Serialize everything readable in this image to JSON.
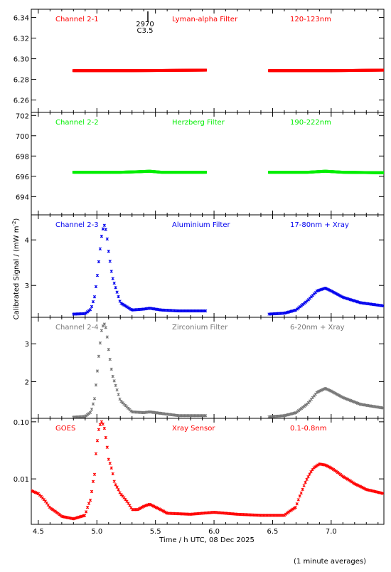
{
  "figure": {
    "ylabel": "Calibrated Signal / (mW m",
    "ylabel_sup": "-2",
    "ylabel_end": ")",
    "xlabel": "Time / h UTC, 08 Dec 2025",
    "footnote": "(1 minute averages)",
    "x_ticks": [
      4.5,
      5.0,
      5.5,
      6.0,
      6.5,
      7.0
    ],
    "x_tick_labels": [
      "4.5",
      "5.0",
      "5.5",
      "6.0",
      "6.5",
      "7.0"
    ],
    "xlim": [
      4.44,
      7.45
    ],
    "flare_marker": {
      "x": 5.45,
      "label1": "2970",
      "label2": "C3.5"
    }
  },
  "chart_data": [
    {
      "type": "scatter",
      "channel": "Channel 2-1",
      "filter": "Lyman-alpha Filter",
      "band": "120-123nm",
      "color": "#ff0000",
      "scale": "linear",
      "ylim": [
        6.248,
        6.348
      ],
      "y_ticks": [
        6.26,
        6.28,
        6.3,
        6.32,
        6.34
      ],
      "y_tick_labels": [
        "6.26",
        "6.28",
        "6.30",
        "6.32",
        "6.34"
      ],
      "segments": [
        {
          "x": [
            4.8,
            5.3,
            5.93
          ],
          "y": [
            6.2885,
            6.2885,
            6.289
          ]
        },
        {
          "x": [
            6.47,
            7.0,
            7.45
          ],
          "y": [
            6.2885,
            6.2885,
            6.289
          ]
        }
      ]
    },
    {
      "type": "scatter",
      "channel": "Channel 2-2",
      "filter": "Herzberg Filter",
      "band": "190-222nm",
      "color": "#00ee00",
      "scale": "linear",
      "ylim": [
        692.2,
        702.3
      ],
      "y_ticks": [
        694,
        696,
        698,
        700,
        702
      ],
      "y_tick_labels": [
        "694",
        "696",
        "698",
        "700",
        "702"
      ],
      "segments": [
        {
          "x": [
            4.8,
            5.2,
            5.35,
            5.45,
            5.55,
            5.93
          ],
          "y": [
            696.4,
            696.4,
            696.45,
            696.5,
            696.4,
            696.4
          ]
        },
        {
          "x": [
            6.47,
            6.8,
            6.95,
            7.1,
            7.45
          ],
          "y": [
            696.4,
            696.4,
            696.5,
            696.4,
            696.35
          ]
        }
      ]
    },
    {
      "type": "scatter",
      "channel": "Channel 2-3",
      "filter": "Aluminium Filter",
      "band": "17-80nm + Xray",
      "color": "#0000ee",
      "scale": "linear",
      "ylim": [
        2.3,
        4.55
      ],
      "y_ticks": [
        3,
        4
      ],
      "y_tick_labels": [
        "3",
        "4"
      ],
      "segments": [
        {
          "x": [
            4.8,
            4.9,
            4.95,
            4.98,
            5.0,
            5.02,
            5.04,
            5.06,
            5.08,
            5.1,
            5.13,
            5.2,
            5.3,
            5.4,
            5.45,
            5.55,
            5.7,
            5.93
          ],
          "y": [
            2.37,
            2.38,
            2.48,
            2.75,
            3.12,
            3.62,
            4.08,
            4.35,
            4.2,
            3.75,
            3.2,
            2.62,
            2.46,
            2.48,
            2.5,
            2.46,
            2.44,
            2.44
          ]
        },
        {
          "x": [
            6.47,
            6.6,
            6.7,
            6.8,
            6.88,
            6.95,
            7.0,
            7.1,
            7.25,
            7.45
          ],
          "y": [
            2.37,
            2.39,
            2.46,
            2.67,
            2.88,
            2.94,
            2.88,
            2.74,
            2.62,
            2.55
          ]
        }
      ]
    },
    {
      "type": "scatter",
      "channel": "Channel 2-4",
      "filter": "Zirconium Filter",
      "band": "6-20nm + Xray",
      "color": "#777777",
      "scale": "linear",
      "ylim": [
        1.03,
        3.7
      ],
      "y_ticks": [
        2,
        3
      ],
      "y_tick_labels": [
        "2",
        "3"
      ],
      "segments": [
        {
          "x": [
            4.8,
            4.9,
            4.95,
            4.98,
            5.0,
            5.02,
            5.04,
            5.06,
            5.08,
            5.1,
            5.13,
            5.2,
            5.3,
            5.4,
            5.45,
            5.55,
            5.7,
            5.93
          ],
          "y": [
            1.06,
            1.08,
            1.2,
            1.55,
            2.15,
            2.8,
            3.35,
            3.55,
            3.4,
            2.85,
            2.2,
            1.5,
            1.2,
            1.18,
            1.2,
            1.16,
            1.1,
            1.1
          ]
        },
        {
          "x": [
            6.47,
            6.6,
            6.7,
            6.8,
            6.88,
            6.95,
            7.0,
            7.1,
            7.25,
            7.45
          ],
          "y": [
            1.07,
            1.1,
            1.18,
            1.42,
            1.72,
            1.82,
            1.75,
            1.58,
            1.4,
            1.3
          ]
        }
      ]
    },
    {
      "type": "scatter",
      "channel": "GOES",
      "filter": "Xray Sensor",
      "band": "0.1-0.8nm",
      "color": "#ff0000",
      "scale": "log",
      "ylim": [
        0.0016,
        0.115
      ],
      "y_ticks": [
        0.01,
        0.1
      ],
      "y_tick_labels": [
        "0.01",
        "0.10"
      ],
      "segments": [
        {
          "x": [
            4.44,
            4.5,
            4.6,
            4.7,
            4.8,
            4.9,
            4.95,
            4.98,
            5.0,
            5.02,
            5.04,
            5.06,
            5.08,
            5.1,
            5.15,
            5.2,
            5.3,
            5.35,
            5.4,
            5.45,
            5.5,
            5.6,
            5.8,
            6.0,
            6.2,
            6.4,
            6.6,
            6.7,
            6.75,
            6.8,
            6.85,
            6.9,
            6.95,
            7.0,
            7.1,
            7.2,
            7.3,
            7.45
          ],
          "y": [
            0.0062,
            0.0055,
            0.0031,
            0.0022,
            0.002,
            0.0023,
            0.0045,
            0.012,
            0.038,
            0.082,
            0.1,
            0.085,
            0.045,
            0.022,
            0.0085,
            0.0055,
            0.0029,
            0.0029,
            0.0033,
            0.0036,
            0.0032,
            0.0025,
            0.0024,
            0.0026,
            0.0024,
            0.0023,
            0.0023,
            0.0032,
            0.006,
            0.0105,
            0.0155,
            0.0182,
            0.0175,
            0.0155,
            0.011,
            0.0082,
            0.0065,
            0.0055
          ]
        }
      ]
    }
  ]
}
